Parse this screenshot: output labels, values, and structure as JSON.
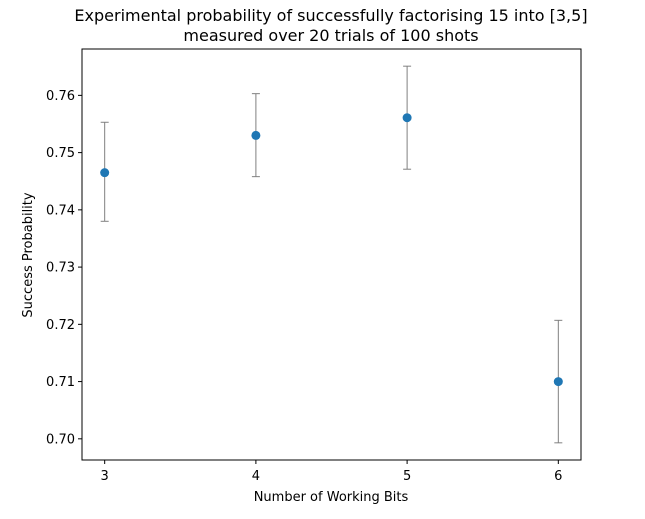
{
  "chart_data": {
    "type": "scatter",
    "title": "Experimental probability of successfully factorising 15 into [3,5]",
    "subtitle": "measured over 20 trials of 100 shots",
    "xlabel": "Number of Working Bits",
    "ylabel": "Success Probability",
    "x": [
      3,
      4,
      5,
      6
    ],
    "x_tick_labels": [
      "3",
      "4",
      "5",
      "6"
    ],
    "y": [
      0.7465,
      0.753,
      0.7561,
      0.71
    ],
    "error_low": [
      0.738,
      0.7458,
      0.7471,
      0.6993
    ],
    "error_high": [
      0.7553,
      0.7603,
      0.7651,
      0.7207
    ],
    "xlim": [
      2.85,
      6.15
    ],
    "ylim": [
      0.6963,
      0.7681
    ],
    "y_ticks": [
      0.7,
      0.71,
      0.72,
      0.73,
      0.74,
      0.75,
      0.76
    ],
    "y_tick_labels": [
      "0.70",
      "0.71",
      "0.72",
      "0.73",
      "0.74",
      "0.75",
      "0.76"
    ],
    "grid": false,
    "legend": "none",
    "colors": {
      "marker": "#1f77b4",
      "errorbar": "#808080",
      "axes": "#000000"
    }
  }
}
